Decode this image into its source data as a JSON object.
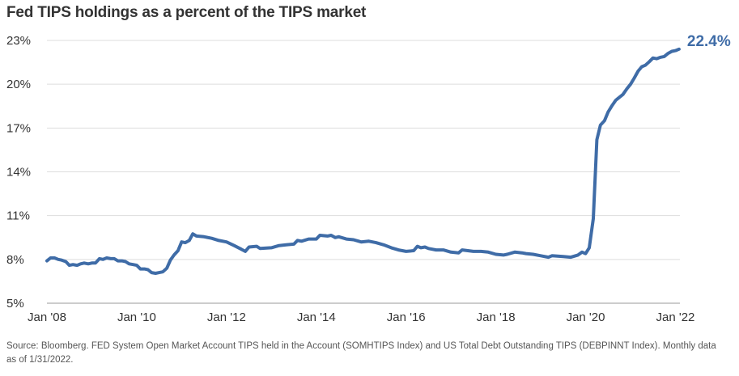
{
  "chart_data": {
    "type": "line",
    "title": "Fed TIPS holdings as a percent of the TIPS market",
    "xlabel": "",
    "ylabel": "",
    "ylim": [
      5,
      23
    ],
    "y_ticks": [
      5,
      8,
      11,
      14,
      17,
      20,
      23
    ],
    "y_tick_labels": [
      "5%",
      "8%",
      "11%",
      "14%",
      "17%",
      "20%",
      "23%"
    ],
    "x_range": [
      2008.0,
      2022.1
    ],
    "x_ticks": [
      2008,
      2010,
      2012,
      2014,
      2016,
      2018,
      2020,
      2022
    ],
    "x_tick_labels": [
      "Jan '08",
      "Jan '10",
      "Jan '12",
      "Jan '14",
      "Jan '16",
      "Jan '18",
      "Jan '20",
      "Jan '22"
    ],
    "end_label": "22.4%",
    "series": [
      {
        "name": "Fed TIPS holdings % of TIPS market",
        "color": "#3f6ca7",
        "points": [
          [
            2008.0,
            7.9
          ],
          [
            2008.08,
            8.1
          ],
          [
            2008.17,
            8.1
          ],
          [
            2008.25,
            8.0
          ],
          [
            2008.33,
            7.95
          ],
          [
            2008.42,
            7.85
          ],
          [
            2008.5,
            7.6
          ],
          [
            2008.58,
            7.65
          ],
          [
            2008.67,
            7.6
          ],
          [
            2008.75,
            7.7
          ],
          [
            2008.83,
            7.75
          ],
          [
            2008.92,
            7.7
          ],
          [
            2009.0,
            7.75
          ],
          [
            2009.08,
            7.75
          ],
          [
            2009.17,
            8.05
          ],
          [
            2009.25,
            8.0
          ],
          [
            2009.33,
            8.1
          ],
          [
            2009.42,
            8.05
          ],
          [
            2009.5,
            8.05
          ],
          [
            2009.58,
            7.9
          ],
          [
            2009.67,
            7.9
          ],
          [
            2009.75,
            7.85
          ],
          [
            2009.83,
            7.7
          ],
          [
            2009.92,
            7.65
          ],
          [
            2010.0,
            7.6
          ],
          [
            2010.08,
            7.35
          ],
          [
            2010.17,
            7.35
          ],
          [
            2010.25,
            7.3
          ],
          [
            2010.33,
            7.1
          ],
          [
            2010.42,
            7.05
          ],
          [
            2010.5,
            7.1
          ],
          [
            2010.58,
            7.15
          ],
          [
            2010.67,
            7.4
          ],
          [
            2010.75,
            7.95
          ],
          [
            2010.83,
            8.3
          ],
          [
            2010.92,
            8.6
          ],
          [
            2011.0,
            9.2
          ],
          [
            2011.08,
            9.15
          ],
          [
            2011.17,
            9.3
          ],
          [
            2011.25,
            9.75
          ],
          [
            2011.33,
            9.6
          ],
          [
            2011.5,
            9.55
          ],
          [
            2011.67,
            9.45
          ],
          [
            2011.83,
            9.3
          ],
          [
            2012.0,
            9.2
          ],
          [
            2012.17,
            8.95
          ],
          [
            2012.33,
            8.7
          ],
          [
            2012.42,
            8.55
          ],
          [
            2012.5,
            8.85
          ],
          [
            2012.67,
            8.9
          ],
          [
            2012.75,
            8.75
          ],
          [
            2013.0,
            8.8
          ],
          [
            2013.17,
            8.95
          ],
          [
            2013.33,
            9.0
          ],
          [
            2013.5,
            9.05
          ],
          [
            2013.58,
            9.3
          ],
          [
            2013.67,
            9.25
          ],
          [
            2013.83,
            9.4
          ],
          [
            2014.0,
            9.4
          ],
          [
            2014.08,
            9.65
          ],
          [
            2014.25,
            9.6
          ],
          [
            2014.33,
            9.65
          ],
          [
            2014.42,
            9.5
          ],
          [
            2014.5,
            9.55
          ],
          [
            2014.67,
            9.4
          ],
          [
            2014.83,
            9.35
          ],
          [
            2015.0,
            9.2
          ],
          [
            2015.17,
            9.25
          ],
          [
            2015.33,
            9.15
          ],
          [
            2015.5,
            9.0
          ],
          [
            2015.67,
            8.8
          ],
          [
            2015.83,
            8.65
          ],
          [
            2016.0,
            8.55
          ],
          [
            2016.17,
            8.6
          ],
          [
            2016.25,
            8.9
          ],
          [
            2016.33,
            8.8
          ],
          [
            2016.42,
            8.85
          ],
          [
            2016.5,
            8.75
          ],
          [
            2016.67,
            8.65
          ],
          [
            2016.83,
            8.65
          ],
          [
            2017.0,
            8.5
          ],
          [
            2017.17,
            8.45
          ],
          [
            2017.25,
            8.65
          ],
          [
            2017.5,
            8.55
          ],
          [
            2017.67,
            8.55
          ],
          [
            2017.83,
            8.5
          ],
          [
            2018.0,
            8.35
          ],
          [
            2018.17,
            8.3
          ],
          [
            2018.25,
            8.35
          ],
          [
            2018.42,
            8.5
          ],
          [
            2018.58,
            8.45
          ],
          [
            2018.67,
            8.4
          ],
          [
            2018.83,
            8.35
          ],
          [
            2019.0,
            8.25
          ],
          [
            2019.17,
            8.15
          ],
          [
            2019.25,
            8.25
          ],
          [
            2019.5,
            8.2
          ],
          [
            2019.67,
            8.15
          ],
          [
            2019.83,
            8.3
          ],
          [
            2019.92,
            8.5
          ],
          [
            2020.0,
            8.4
          ],
          [
            2020.08,
            8.8
          ],
          [
            2020.17,
            10.8
          ],
          [
            2020.25,
            16.2
          ],
          [
            2020.33,
            17.2
          ],
          [
            2020.42,
            17.5
          ],
          [
            2020.5,
            18.1
          ],
          [
            2020.58,
            18.5
          ],
          [
            2020.67,
            18.9
          ],
          [
            2020.75,
            19.1
          ],
          [
            2020.83,
            19.3
          ],
          [
            2020.92,
            19.7
          ],
          [
            2021.0,
            20.0
          ],
          [
            2021.08,
            20.4
          ],
          [
            2021.17,
            20.9
          ],
          [
            2021.25,
            21.2
          ],
          [
            2021.33,
            21.3
          ],
          [
            2021.42,
            21.55
          ],
          [
            2021.5,
            21.8
          ],
          [
            2021.58,
            21.75
          ],
          [
            2021.67,
            21.85
          ],
          [
            2021.75,
            21.9
          ],
          [
            2021.83,
            22.1
          ],
          [
            2021.92,
            22.25
          ],
          [
            2022.0,
            22.3
          ],
          [
            2022.08,
            22.4
          ]
        ]
      }
    ]
  },
  "source_note": "Source: Bloomberg. FED System Open Market Account TIPS held in the Account (SOMHTIPS Index) and US Total Debt Outstanding TIPS (DEBPINNT Index). Monthly data as of 1/31/2022."
}
